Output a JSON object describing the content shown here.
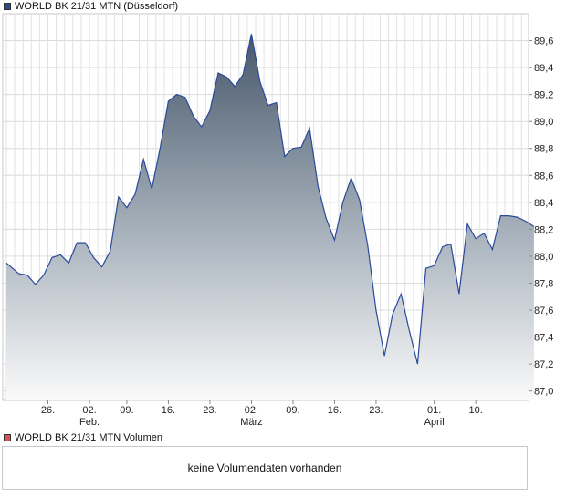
{
  "price_legend": {
    "label": "WORLD BK 21/31 MTN (Düsseldorf)",
    "color": "#2a4a8a"
  },
  "volume_legend": {
    "label": "WORLD BK 21/31 MTN Volumen",
    "color": "#d9534f"
  },
  "volume_panel": {
    "message": "keine Volumendaten vorhanden"
  },
  "chart_data": {
    "type": "area",
    "title": "WORLD BK 21/31 MTN (Düsseldorf)",
    "xlabel": "",
    "ylabel": "",
    "y_axis_position": "right",
    "ylim": [
      86.93,
      89.8
    ],
    "y_ticks": [
      87.0,
      87.2,
      87.4,
      87.6,
      87.8,
      88.0,
      88.2,
      88.4,
      88.6,
      88.8,
      89.0,
      89.2,
      89.4,
      89.6
    ],
    "y_tick_labels": [
      "87,0",
      "87,2",
      "87,4",
      "87,6",
      "87,8",
      "88,0",
      "88,2",
      "88,4",
      "88,6",
      "88,8",
      "89,0",
      "89,2",
      "89,4",
      "89,6"
    ],
    "x_ticks": [
      {
        "label": "26.",
        "month": "",
        "index": 10
      },
      {
        "label": "02.",
        "month": "Feb.",
        "index": 20
      },
      {
        "label": "09.",
        "month": "",
        "index": 29
      },
      {
        "label": "16.",
        "month": "",
        "index": 39
      },
      {
        "label": "23.",
        "month": "",
        "index": 49
      },
      {
        "label": "02.",
        "month": "März",
        "index": 59
      },
      {
        "label": "09.",
        "month": "",
        "index": 69
      },
      {
        "label": "16.",
        "month": "",
        "index": 79
      },
      {
        "label": "23.",
        "month": "",
        "index": 89
      },
      {
        "label": "01.",
        "month": "April",
        "index": 103
      },
      {
        "label": "10.",
        "month": "",
        "index": 113
      }
    ],
    "n_slots": 123,
    "grid": true,
    "series": [
      {
        "points": [
          [
            0,
            87.95
          ],
          [
            3,
            87.87
          ],
          [
            5,
            87.86
          ],
          [
            7,
            87.79
          ],
          [
            9,
            87.86
          ],
          [
            11,
            87.99
          ],
          [
            13,
            88.01
          ],
          [
            15,
            87.95
          ],
          [
            17,
            88.1
          ],
          [
            19,
            88.1
          ],
          [
            21,
            87.99
          ],
          [
            23,
            87.92
          ],
          [
            25,
            88.04
          ],
          [
            27,
            88.44
          ],
          [
            29,
            88.36
          ],
          [
            31,
            88.46
          ],
          [
            33,
            88.72
          ],
          [
            35,
            88.5
          ],
          [
            37,
            88.8
          ],
          [
            39,
            89.15
          ],
          [
            41,
            89.2
          ],
          [
            43,
            89.18
          ],
          [
            45,
            89.04
          ],
          [
            47,
            88.96
          ],
          [
            49,
            89.08
          ],
          [
            51,
            89.36
          ],
          [
            53,
            89.33
          ],
          [
            55,
            89.26
          ],
          [
            57,
            89.35
          ],
          [
            59,
            89.65
          ],
          [
            61,
            89.3
          ],
          [
            63,
            89.12
          ],
          [
            65,
            89.14
          ],
          [
            67,
            88.74
          ],
          [
            69,
            88.8
          ],
          [
            71,
            88.81
          ],
          [
            73,
            88.95
          ],
          [
            75,
            88.52
          ],
          [
            77,
            88.28
          ],
          [
            79,
            88.12
          ],
          [
            81,
            88.4
          ],
          [
            83,
            88.58
          ],
          [
            85,
            88.42
          ],
          [
            87,
            88.08
          ],
          [
            89,
            87.6
          ],
          [
            91,
            87.26
          ],
          [
            93,
            87.57
          ],
          [
            95,
            87.72
          ],
          [
            97,
            87.45
          ],
          [
            99,
            87.2
          ],
          [
            101,
            87.91
          ],
          [
            103,
            87.93
          ],
          [
            105,
            88.07
          ],
          [
            107,
            88.09
          ],
          [
            109,
            87.72
          ],
          [
            111,
            88.24
          ],
          [
            113,
            88.13
          ],
          [
            115,
            88.17
          ],
          [
            117,
            88.05
          ],
          [
            119,
            88.3
          ],
          [
            121,
            88.3
          ],
          [
            123,
            88.29
          ],
          [
            125,
            88.26
          ],
          [
            127,
            88.22
          ]
        ]
      }
    ]
  }
}
